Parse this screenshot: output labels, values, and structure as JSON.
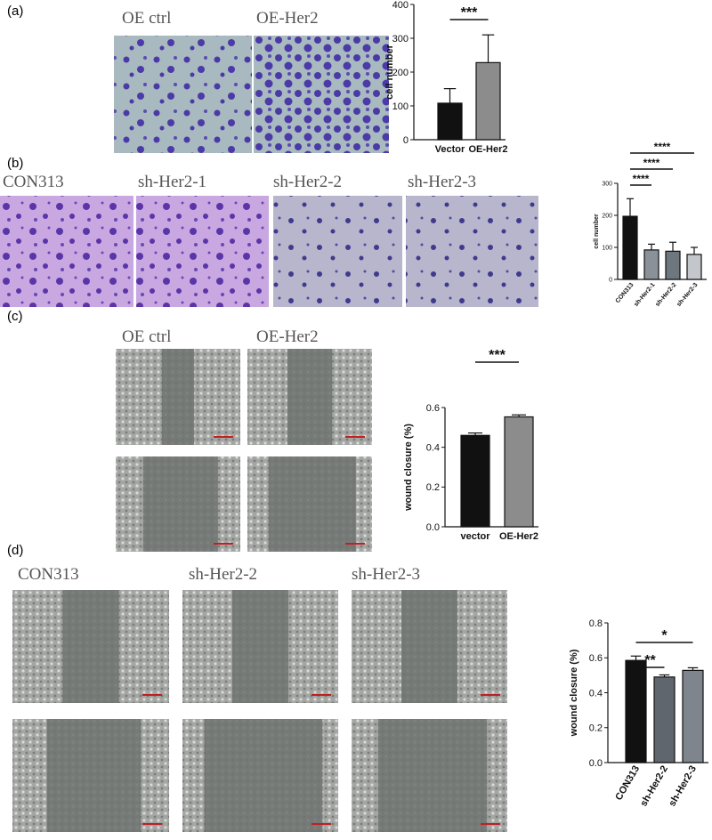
{
  "panels": [
    {
      "label": "(a)",
      "images": [
        "OE ctrl",
        "OE-Her2"
      ]
    },
    {
      "label": "(b)",
      "images": [
        "CON313",
        "sh-Her2-1",
        "sh-Her2-2",
        "sh-Her2-3"
      ]
    },
    {
      "label": "(c)",
      "images": [
        "OE ctrl",
        "OE-Her2"
      ]
    },
    {
      "label": "(d)",
      "images": [
        "CON313",
        "sh-Her2-2",
        "sh-Her2-3"
      ]
    }
  ],
  "chart_data": [
    {
      "type": "bar",
      "y_label": "cell number",
      "categories": [
        "Vector",
        "OE-Her2"
      ],
      "values": [
        108,
        228
      ],
      "errors": [
        43,
        82
      ],
      "colors": [
        "#111111",
        "#8c8c8c"
      ],
      "ylim": [
        0,
        400
      ],
      "yticks": [
        0,
        100,
        200,
        300,
        400
      ],
      "significance": [
        {
          "pair": [
            0,
            1
          ],
          "label": "***"
        }
      ]
    },
    {
      "type": "bar",
      "y_label": "cell number",
      "categories": [
        "CON313",
        "sh-Her2-1",
        "sh-Her2-2",
        "sh-Her2-3"
      ],
      "values": [
        197,
        92,
        88,
        78
      ],
      "errors": [
        55,
        18,
        28,
        22
      ],
      "colors": [
        "#111111",
        "#8a9199",
        "#6e767e",
        "#c3c7cb"
      ],
      "ylim": [
        0,
        300
      ],
      "yticks": [
        0,
        100,
        200,
        300
      ],
      "significance": [
        {
          "pair": [
            0,
            1
          ],
          "label": "****"
        },
        {
          "pair": [
            0,
            2
          ],
          "label": "****"
        },
        {
          "pair": [
            0,
            3
          ],
          "label": "****"
        }
      ]
    },
    {
      "type": "bar",
      "y_label": "wound closure (%)",
      "categories": [
        "vector",
        "OE-Her2"
      ],
      "values": [
        0.46,
        0.553
      ],
      "errors": [
        0.012,
        0.01
      ],
      "colors": [
        "#111111",
        "#8c8c8c"
      ],
      "ylim": [
        0,
        0.6
      ],
      "yticks": [
        {
          "value": 0,
          "label": "0.0"
        },
        0.2,
        0.4,
        0.6
      ],
      "significance": [
        {
          "pair": [
            0,
            1
          ],
          "label": "***"
        }
      ]
    },
    {
      "type": "bar",
      "y_label": "wound closure (%)",
      "categories": [
        "CON313",
        "sh-Her2-2",
        "sh-Her2-3"
      ],
      "values": [
        0.585,
        0.49,
        0.528
      ],
      "errors": [
        0.025,
        0.012,
        0.015
      ],
      "colors": [
        "#111111",
        "#5f666d",
        "#7e858c"
      ],
      "ylim": [
        0,
        0.8
      ],
      "yticks": [
        {
          "value": 0,
          "label": "0.0"
        },
        0.2,
        0.4,
        0.6,
        0.8
      ],
      "significance": [
        {
          "pair": [
            0,
            1
          ],
          "label": "**"
        },
        {
          "pair": [
            0,
            2
          ],
          "label": "*"
        }
      ]
    }
  ]
}
